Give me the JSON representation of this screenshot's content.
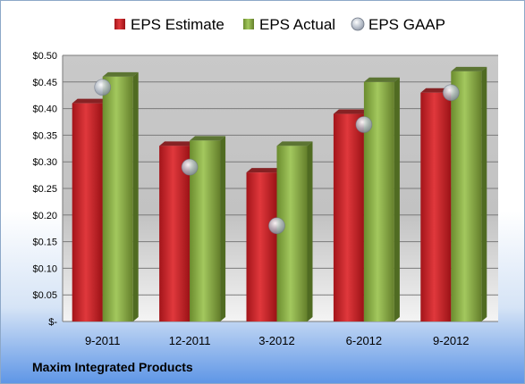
{
  "company": "Maxim Integrated Products",
  "colors": {
    "estimate": "#cc1f24",
    "actual": "#8bb045",
    "gaap": "#b8c0cc"
  },
  "chart_data": {
    "type": "bar",
    "categories": [
      "9-2011",
      "12-2011",
      "3-2012",
      "6-2012",
      "9-2012"
    ],
    "series": [
      {
        "name": "EPS Estimate",
        "values": [
          0.41,
          0.33,
          0.28,
          0.39,
          0.43
        ]
      },
      {
        "name": "EPS Actual",
        "values": [
          0.46,
          0.34,
          0.33,
          0.45,
          0.47
        ]
      },
      {
        "name": "EPS GAAP",
        "values": [
          0.44,
          0.29,
          0.18,
          0.37,
          0.43
        ],
        "marker": "scatter"
      }
    ],
    "y_ticks": [
      "$-",
      "$0.05",
      "$0.10",
      "$0.15",
      "$0.20",
      "$0.25",
      "$0.30",
      "$0.35",
      "$0.40",
      "$0.45",
      "$0.50"
    ],
    "ylim": [
      0,
      0.5
    ],
    "grid": true,
    "legend": "top"
  }
}
